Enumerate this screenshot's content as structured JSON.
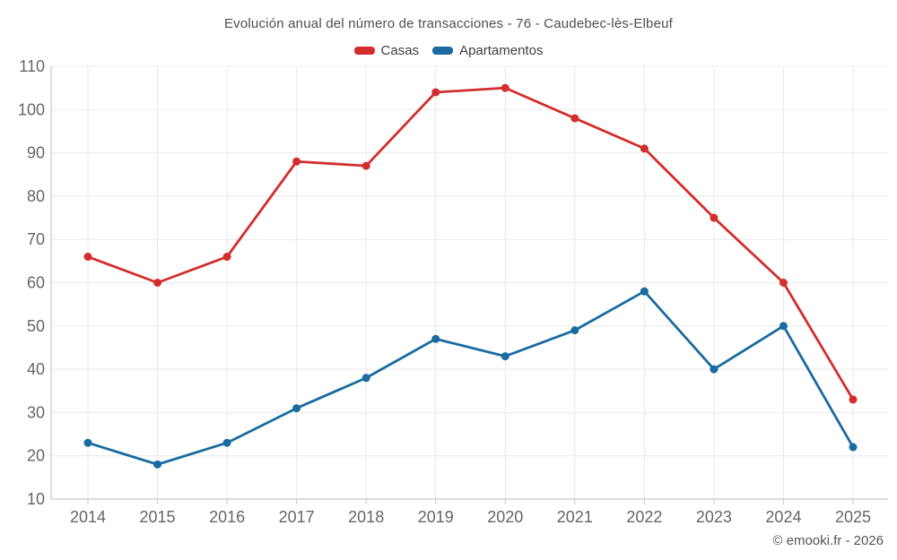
{
  "header": {
    "title": "Evolución anual del número de transacciones - 76 - Caudebec-lès-Elbeuf"
  },
  "footer": {
    "copyright": "© emooki.fr - 2026"
  },
  "chart_data": {
    "type": "line",
    "title": "Evolución anual del número de transacciones - 76 - Caudebec-lès-Elbeuf",
    "categories": [
      "2014",
      "2015",
      "2016",
      "2017",
      "2018",
      "2019",
      "2020",
      "2021",
      "2022",
      "2023",
      "2024",
      "2025"
    ],
    "series": [
      {
        "name": "Casas",
        "color": "#d32d2d",
        "values": [
          66,
          60,
          66,
          88,
          87,
          104,
          105,
          98,
          91,
          75,
          60,
          33
        ]
      },
      {
        "name": "Apartamentos",
        "color": "#1a6ba0",
        "values": [
          23,
          18,
          23,
          31,
          38,
          47,
          43,
          49,
          58,
          40,
          50,
          22
        ]
      }
    ],
    "xlabel": "",
    "ylabel": "",
    "ylim": [
      10,
      110
    ],
    "ytick_step": 10,
    "grid": true,
    "legend_position": "top",
    "marker": "circle",
    "palette": {
      "background": "#ffffff",
      "gridline": "#e9e9e9",
      "axis_line": "#c9c9c9",
      "tick_label": "#666666",
      "title_text": "#4e4e4e",
      "legend_text": "#3f3f3f",
      "copyright_text": "#555555"
    }
  }
}
